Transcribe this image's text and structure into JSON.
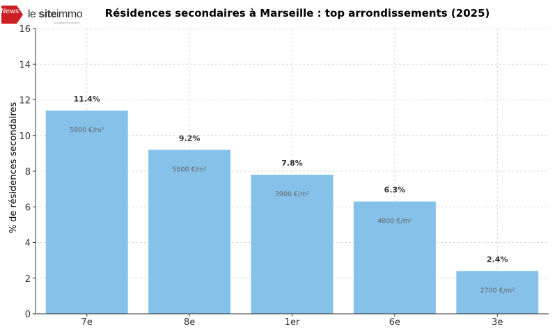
{
  "logo": {
    "badge": "News",
    "word_plain": "le ",
    "word_bold": "site",
    "word_tail": "immo",
    "tagline": "Actualité immobilière"
  },
  "chart_data": {
    "type": "bar",
    "title": "Résidences secondaires à Marseille : top arrondissements (2025)",
    "xlabel": "",
    "ylabel": "% de résidences secondaires",
    "categories": [
      "7e",
      "8e",
      "1er",
      "6e",
      "3e"
    ],
    "values": [
      11.4,
      9.2,
      7.8,
      6.3,
      2.4
    ],
    "value_labels": [
      "11.4%",
      "9.2%",
      "7.8%",
      "6.3%",
      "2.4%"
    ],
    "price_labels": [
      "5800 €/m²",
      "5600 €/m²",
      "3900 €/m²",
      "4800 €/m²",
      "2700 €/m²"
    ],
    "ylim": [
      0,
      16
    ],
    "yticks": [
      0,
      2,
      4,
      6,
      8,
      10,
      12,
      14,
      16
    ],
    "grid": true,
    "colors": {
      "bar": "#85c1e9",
      "grid": "#cccccc",
      "axis": "#333333",
      "title": "#333333",
      "price_label": "#666666",
      "badge": "#cc1f24"
    }
  }
}
